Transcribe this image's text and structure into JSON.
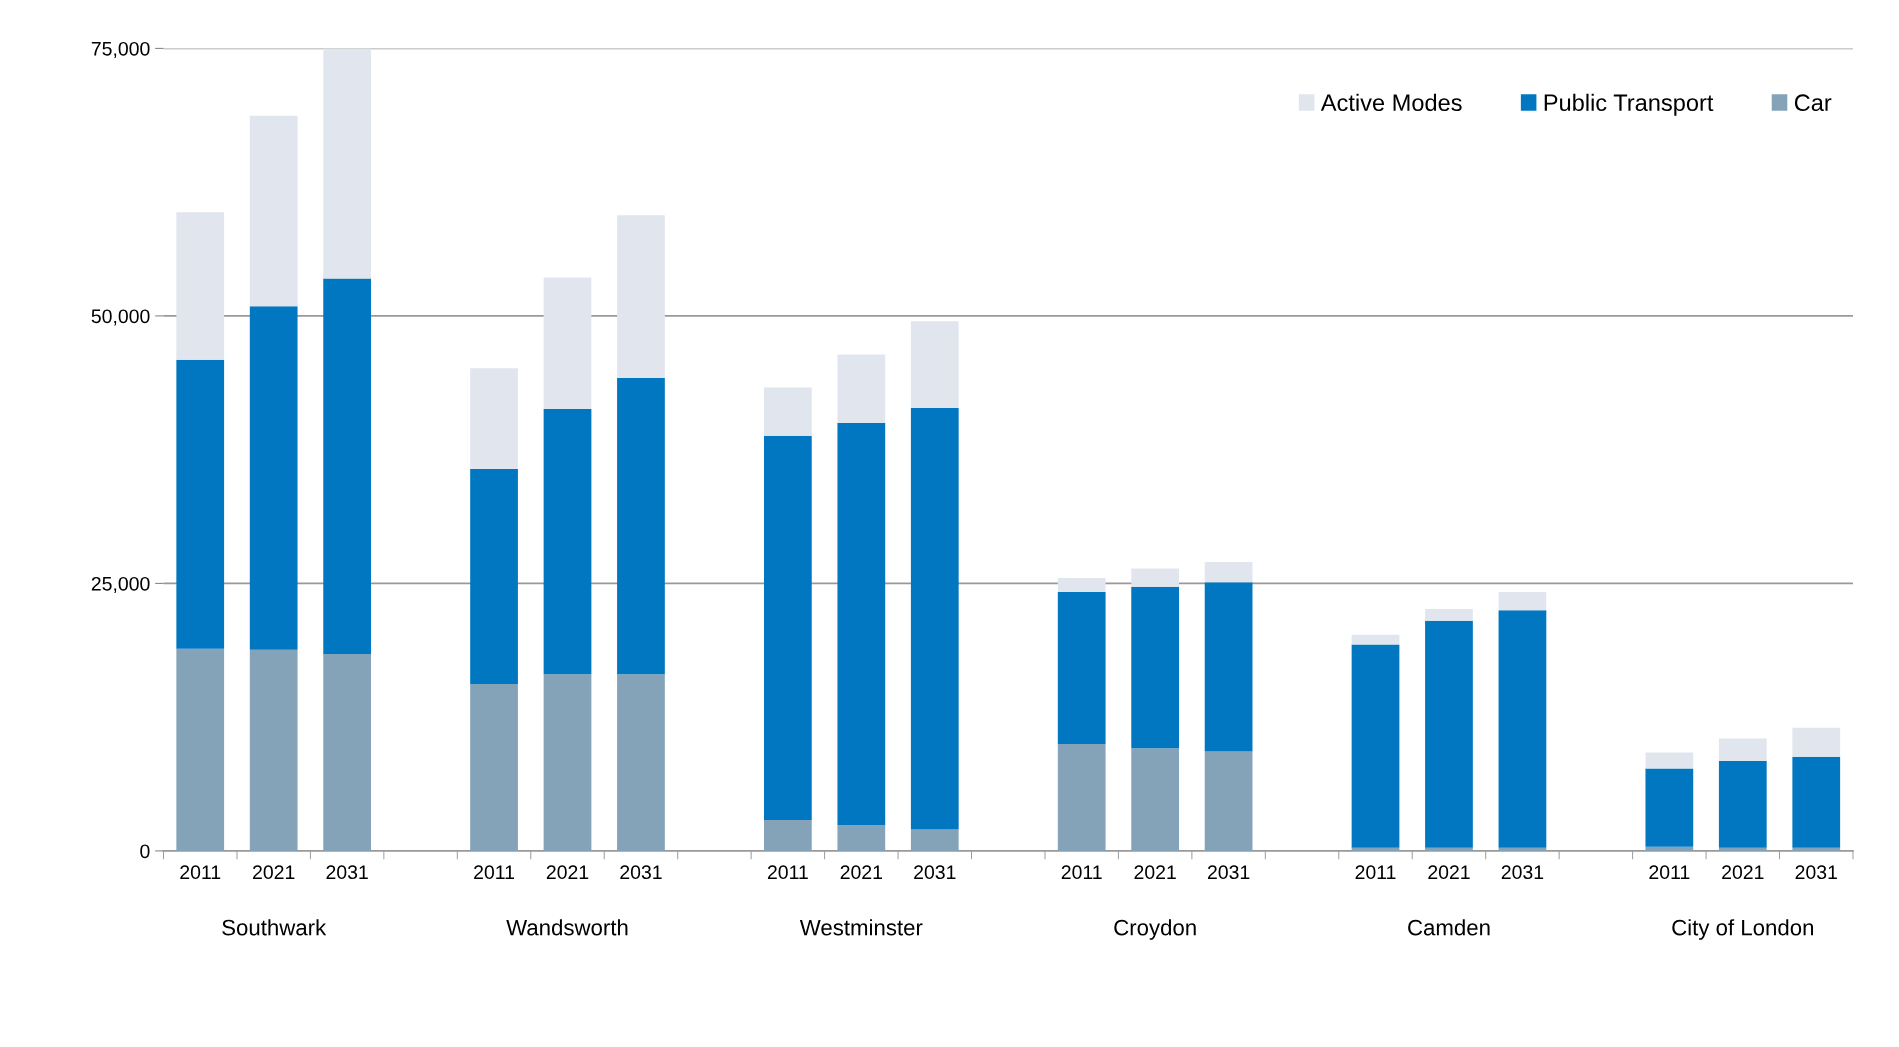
{
  "chart_data": {
    "type": "bar",
    "stacked": true,
    "categories": [
      "2011",
      "2021",
      "2031",
      null,
      "2011",
      "2021",
      "2031",
      null,
      "2011",
      "2021",
      "2031",
      null,
      "2011",
      "2021",
      "2031",
      null,
      "2011",
      "2021",
      "2031",
      null,
      "2011",
      "2021",
      "2031"
    ],
    "series": [
      {
        "name": "Car",
        "color": "#84a3b8",
        "values": [
          18900,
          18800,
          18400,
          null,
          15600,
          16500,
          16500,
          null,
          2900,
          2400,
          2000,
          null,
          10000,
          9600,
          9300,
          null,
          300,
          300,
          300,
          null,
          400,
          300,
          300
        ]
      },
      {
        "name": "Public Transport",
        "color": "#0077c0",
        "values": [
          27000,
          32100,
          35100,
          null,
          20100,
          24800,
          27700,
          null,
          35900,
          37600,
          39400,
          null,
          14200,
          15100,
          15800,
          null,
          19000,
          21200,
          22200,
          null,
          7300,
          8100,
          8500
        ]
      },
      {
        "name": "Active Modes",
        "color": "#e1e6ee",
        "values": [
          13800,
          17800,
          21500,
          null,
          9400,
          12300,
          15200,
          null,
          4500,
          6400,
          8100,
          null,
          1300,
          1700,
          1900,
          null,
          900,
          1100,
          1700,
          null,
          1500,
          2100,
          2700
        ]
      }
    ],
    "annotations": [
      "Southwark",
      "Wandsworth",
      "Westminster",
      "Croydon",
      "Camden",
      "City of London"
    ],
    "ylim": [
      0,
      75000
    ],
    "yticks": [
      {
        "value": 0,
        "label": "0"
      },
      {
        "value": 25000,
        "label": "25,000"
      },
      {
        "value": 50000,
        "label": "50,000"
      },
      {
        "value": 75000,
        "label": "75,000"
      }
    ],
    "grid": "y",
    "legend": "top right"
  }
}
